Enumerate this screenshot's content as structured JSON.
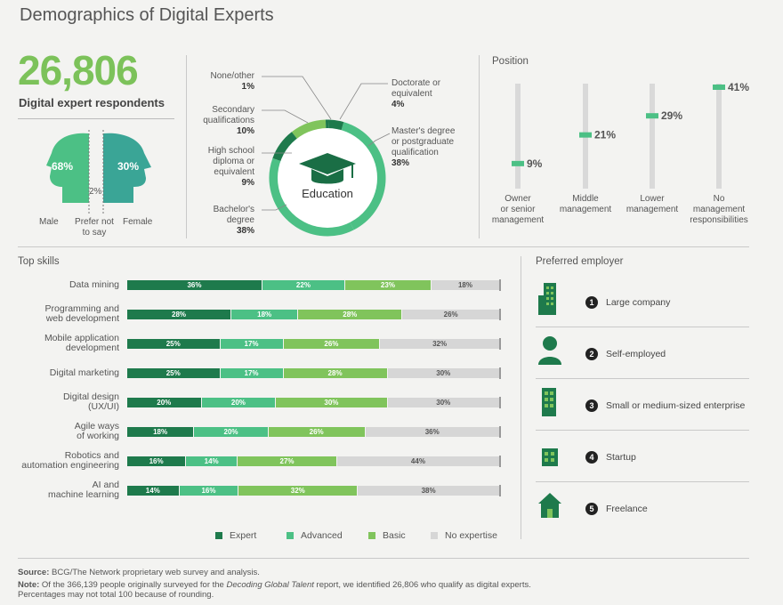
{
  "title": "Demographics of Digital Experts",
  "respondents": {
    "count": "26,806",
    "label": "Digital expert respondents"
  },
  "gender": {
    "male_pct": "68%",
    "female_pct": "30%",
    "prefer_pct": "2%",
    "male_label": "Male",
    "prefer_label_1": "Prefer not",
    "prefer_label_2": "to say",
    "female_label": "Female"
  },
  "education": {
    "center_label": "Education",
    "labels": {
      "none_name": "None/other",
      "none_pct": "1%",
      "secondary_name_1": "Secondary",
      "secondary_name_2": "qualifications",
      "secondary_pct": "10%",
      "highschool_name_1": "High school",
      "highschool_name_2": "diploma or",
      "highschool_name_3": "equivalent",
      "highschool_pct": "9%",
      "bachelor_name_1": "Bachelor's",
      "bachelor_name_2": "degree",
      "bachelor_pct": "38%",
      "doctorate_name_1": "Doctorate or",
      "doctorate_name_2": "equivalent",
      "doctorate_pct": "4%",
      "master_name_1": "Master's degree",
      "master_name_2": "or postgraduate",
      "master_name_3": "qualification",
      "master_pct": "38%"
    }
  },
  "position": {
    "label": "Position",
    "items": [
      {
        "pct": "9%",
        "l1": "Owner",
        "l2": "or senior",
        "l3": "management"
      },
      {
        "pct": "21%",
        "l1": "Middle",
        "l2": "management",
        "l3": ""
      },
      {
        "pct": "29%",
        "l1": "Lower",
        "l2": "management",
        "l3": ""
      },
      {
        "pct": "41%",
        "l1": "No",
        "l2": "management",
        "l3": "responsibilities"
      }
    ]
  },
  "top_skills": {
    "label": "Top skills",
    "skills": [
      {
        "l1": "Data mining",
        "l2": "",
        "labels": [
          "36%",
          "22%",
          "23%",
          "18%"
        ]
      },
      {
        "l1": "Programming and",
        "l2": "web development",
        "labels": [
          "28%",
          "18%",
          "28%",
          "26%"
        ]
      },
      {
        "l1": "Mobile application",
        "l2": "development",
        "labels": [
          "25%",
          "17%",
          "26%",
          "32%"
        ]
      },
      {
        "l1": "Digital marketing",
        "l2": "",
        "labels": [
          "25%",
          "17%",
          "28%",
          "30%"
        ]
      },
      {
        "l1": "Digital design",
        "l2": "(UX/UI)",
        "labels": [
          "20%",
          "20%",
          "30%",
          "30%"
        ]
      },
      {
        "l1": "Agile ways",
        "l2": "of working",
        "labels": [
          "18%",
          "20%",
          "26%",
          "36%"
        ]
      },
      {
        "l1": "Robotics and",
        "l2": "automation engineering",
        "labels": [
          "16%",
          "14%",
          "27%",
          "44%"
        ]
      },
      {
        "l1": "AI and",
        "l2": "machine learning",
        "labels": [
          "14%",
          "16%",
          "32%",
          "38%"
        ]
      }
    ],
    "legend": [
      "Expert",
      "Advanced",
      "Basic",
      "No expertise"
    ]
  },
  "preferred_employer": {
    "label": "Preferred employer",
    "items": [
      {
        "rank": "1",
        "name": "Large company",
        "icon": "large-company-icon"
      },
      {
        "rank": "2",
        "name": "Self-employed",
        "icon": "person-icon"
      },
      {
        "rank": "3",
        "name": "Small or medium-sized enterprise",
        "icon": "medium-building-icon"
      },
      {
        "rank": "4",
        "name": "Startup",
        "icon": "small-building-icon"
      },
      {
        "rank": "5",
        "name": "Freelance",
        "icon": "house-icon"
      }
    ]
  },
  "footer": {
    "source_label": "Source:",
    "source_text": " BCG/The Network proprietary web survey and analysis.",
    "note_label": "Note:",
    "note_text_1": " Of the 366,139 people originally surveyed for the ",
    "note_italic": "Decoding Global Talent",
    "note_text_2": " report, we identified 26,806 who qualify as digital experts.",
    "note_line_2": "Percentages may not total 100 because of rounding."
  },
  "colors": {
    "expert": "#1e7a4c",
    "advanced": "#4cc085",
    "basic": "#80c45c",
    "none": "#d6d6d6",
    "accent": "#7cc25a"
  },
  "chart_data": [
    {
      "type": "pie",
      "title": "Education",
      "categories": [
        "None/other",
        "Doctorate or equivalent",
        "Master's degree or postgraduate qualification",
        "Bachelor's degree",
        "High school diploma or equivalent",
        "Secondary qualifications"
      ],
      "values": [
        1,
        4,
        38,
        38,
        9,
        10
      ]
    },
    {
      "type": "bar",
      "title": "Position",
      "categories": [
        "Owner or senior management",
        "Middle management",
        "Lower management",
        "No management responsibilities"
      ],
      "values": [
        9,
        21,
        29,
        41
      ],
      "ylim": [
        0,
        41
      ]
    },
    {
      "type": "bar",
      "title": "Top skills",
      "categories": [
        "Data mining",
        "Programming and web development",
        "Mobile application development",
        "Digital marketing",
        "Digital design (UX/UI)",
        "Agile ways of working",
        "Robotics and automation engineering",
        "AI and machine learning"
      ],
      "series": [
        {
          "name": "Expert",
          "values": [
            36,
            28,
            25,
            25,
            20,
            18,
            16,
            14
          ]
        },
        {
          "name": "Advanced",
          "values": [
            22,
            18,
            17,
            17,
            20,
            20,
            14,
            16
          ]
        },
        {
          "name": "Basic",
          "values": [
            23,
            28,
            26,
            28,
            30,
            26,
            27,
            32
          ]
        },
        {
          "name": "No expertise",
          "values": [
            18,
            26,
            32,
            30,
            30,
            36,
            44,
            38
          ]
        }
      ],
      "legend": "bottom"
    },
    {
      "type": "pie",
      "title": "",
      "categories": [
        "Male",
        "Prefer not to say",
        "Female"
      ],
      "values": [
        68,
        2,
        30
      ]
    }
  ]
}
